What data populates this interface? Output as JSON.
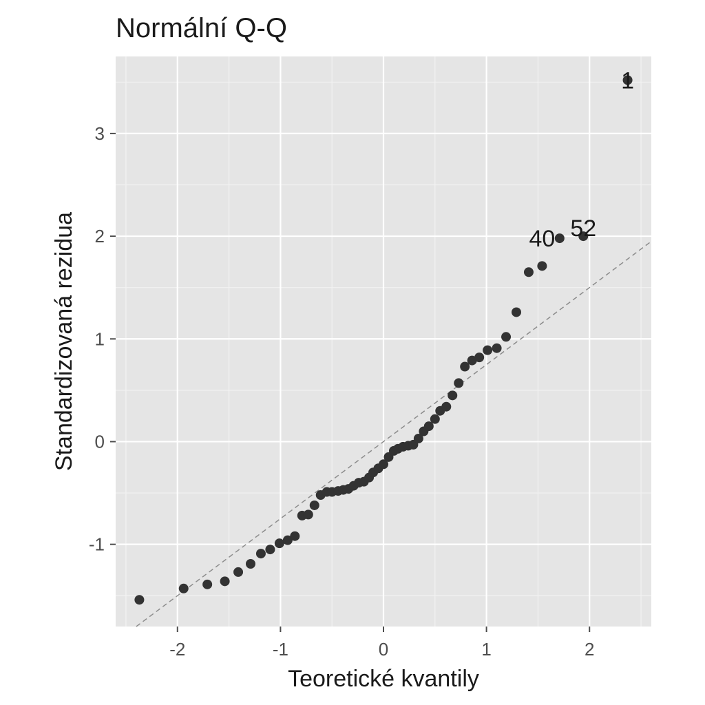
{
  "chart_data": {
    "type": "scatter",
    "title": "Normální Q-Q",
    "xlabel": "Teoretické kvantily",
    "ylabel": "Standardizovaná rezidua",
    "xlim": [
      -2.6,
      2.6
    ],
    "ylim": [
      -1.8,
      3.75
    ],
    "x_ticks": [
      -2,
      -1,
      0,
      1,
      2
    ],
    "x_tick_labels": [
      "-2",
      "-1",
      "0",
      "1",
      "2"
    ],
    "y_ticks": [
      -1,
      0,
      1,
      2,
      3
    ],
    "y_tick_labels": [
      "-1",
      "0",
      "1",
      "2",
      "3"
    ],
    "grid": true,
    "reference_line": {
      "slope": 0.75,
      "intercept": 0.0
    },
    "points": [
      {
        "x": -2.37,
        "y": -1.54
      },
      {
        "x": -1.94,
        "y": -1.43
      },
      {
        "x": -1.71,
        "y": -1.39
      },
      {
        "x": -1.54,
        "y": -1.36
      },
      {
        "x": -1.41,
        "y": -1.27
      },
      {
        "x": -1.29,
        "y": -1.19
      },
      {
        "x": -1.19,
        "y": -1.09
      },
      {
        "x": -1.1,
        "y": -1.05
      },
      {
        "x": -1.01,
        "y": -0.99
      },
      {
        "x": -0.93,
        "y": -0.96
      },
      {
        "x": -0.86,
        "y": -0.92
      },
      {
        "x": -0.79,
        "y": -0.72
      },
      {
        "x": -0.73,
        "y": -0.71
      },
      {
        "x": -0.67,
        "y": -0.62
      },
      {
        "x": -0.61,
        "y": -0.52
      },
      {
        "x": -0.55,
        "y": -0.49
      },
      {
        "x": -0.5,
        "y": -0.49
      },
      {
        "x": -0.44,
        "y": -0.48
      },
      {
        "x": -0.39,
        "y": -0.47
      },
      {
        "x": -0.34,
        "y": -0.46
      },
      {
        "x": -0.29,
        "y": -0.43
      },
      {
        "x": -0.24,
        "y": -0.4
      },
      {
        "x": -0.19,
        "y": -0.39
      },
      {
        "x": -0.14,
        "y": -0.35
      },
      {
        "x": -0.1,
        "y": -0.3
      },
      {
        "x": -0.05,
        "y": -0.26
      },
      {
        "x": 0.0,
        "y": -0.22
      },
      {
        "x": 0.05,
        "y": -0.15
      },
      {
        "x": 0.1,
        "y": -0.09
      },
      {
        "x": 0.14,
        "y": -0.07
      },
      {
        "x": 0.19,
        "y": -0.05
      },
      {
        "x": 0.24,
        "y": -0.04
      },
      {
        "x": 0.29,
        "y": -0.03
      },
      {
        "x": 0.34,
        "y": 0.03
      },
      {
        "x": 0.39,
        "y": 0.1
      },
      {
        "x": 0.44,
        "y": 0.15
      },
      {
        "x": 0.5,
        "y": 0.22
      },
      {
        "x": 0.55,
        "y": 0.3
      },
      {
        "x": 0.61,
        "y": 0.34
      },
      {
        "x": 0.67,
        "y": 0.45
      },
      {
        "x": 0.73,
        "y": 0.57
      },
      {
        "x": 0.79,
        "y": 0.73
      },
      {
        "x": 0.86,
        "y": 0.79
      },
      {
        "x": 0.93,
        "y": 0.82
      },
      {
        "x": 1.01,
        "y": 0.89
      },
      {
        "x": 1.1,
        "y": 0.91
      },
      {
        "x": 1.19,
        "y": 1.02
      },
      {
        "x": 1.29,
        "y": 1.26
      },
      {
        "x": 1.41,
        "y": 1.65
      },
      {
        "x": 1.54,
        "y": 1.71
      },
      {
        "x": 1.71,
        "y": 1.98
      },
      {
        "x": 1.94,
        "y": 2.0
      },
      {
        "x": 2.37,
        "y": 3.52
      }
    ],
    "annotations": [
      {
        "label": "1",
        "x": 2.37,
        "y": 3.52
      },
      {
        "label": "40",
        "x": 1.54,
        "y": 1.98
      },
      {
        "label": "52",
        "x": 1.94,
        "y": 2.08
      }
    ],
    "colors": {
      "panel": "#e5e5e5",
      "grid_major": "#ffffff",
      "grid_minor": "#f2f2f2",
      "point": "#333333",
      "reference_line": "#8c8c8c",
      "text": "#1a1a1a",
      "axis_text": "#4d4d4d"
    }
  }
}
